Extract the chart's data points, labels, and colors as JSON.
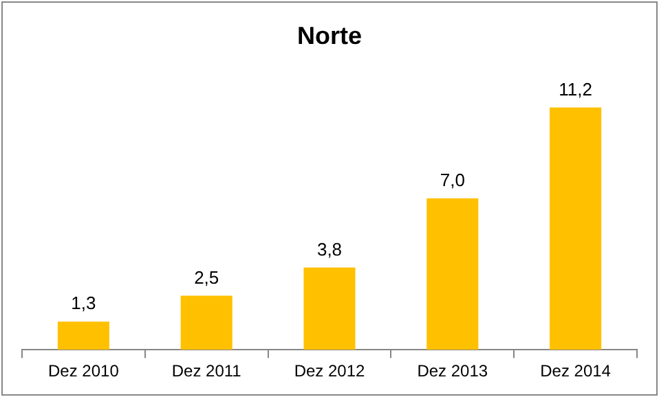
{
  "chart_data": {
    "type": "bar",
    "title": "Norte",
    "categories": [
      "Dez 2010",
      "Dez 2011",
      "Dez 2012",
      "Dez 2013",
      "Dez 2014"
    ],
    "values": [
      1.3,
      2.5,
      3.8,
      7.0,
      11.2
    ],
    "value_labels": [
      "1,3",
      "2,5",
      "3,8",
      "7,0",
      "11,2"
    ],
    "color": "#ffc000",
    "grid": false,
    "legend": false
  }
}
